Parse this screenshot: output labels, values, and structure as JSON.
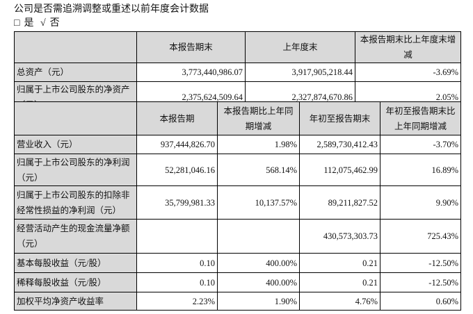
{
  "title": "公司是否需追溯调整或重述以前年度会计数据",
  "options": {
    "checkbox_icon": "□",
    "yes": "是",
    "check_icon": "√",
    "no": "否"
  },
  "table1": {
    "headers": [
      "",
      "本报告期末",
      "上年度末",
      "本报告期末比上年度末增减"
    ],
    "rows": [
      [
        "总资产（元）",
        "3,773,440,986.07",
        "3,917,905,218.44",
        "-3.69%"
      ],
      [
        "归属于上市公司股东的净资产（元）",
        "2,375,624,509.64",
        "2,327,874,670.86",
        "2.05%"
      ]
    ]
  },
  "table2": {
    "headers": [
      "",
      "本报告期",
      "本报告期比上年同期增减",
      "年初至报告期末",
      "年初至报告期末比上年同期增减"
    ],
    "rows": [
      [
        "营业收入（元）",
        "937,444,826.70",
        "1.98%",
        "2,589,730,412.43",
        "-3.70%"
      ],
      [
        "归属于上市公司股东的净利润（元）",
        "52,281,046.16",
        "568.14%",
        "112,075,462.99",
        "16.89%"
      ],
      [
        "归属于上市公司股东的扣除非经常性损益的净利润（元）",
        "35,799,981.33",
        "10,137.57%",
        "89,211,827.52",
        "9.90%"
      ],
      [
        "经营活动产生的现金流量净额（元）",
        "",
        "",
        "430,573,303.73",
        "725.43%"
      ],
      [
        "基本每股收益（元/股）",
        "0.10",
        "400.00%",
        "0.21",
        "-12.50%"
      ],
      [
        "稀释每股收益（元/股）",
        "0.10",
        "400.00%",
        "0.21",
        "-12.50%"
      ],
      [
        "加权平均净资产收益率",
        "2.23%",
        "1.90%",
        "4.76%",
        "0.60%"
      ]
    ]
  }
}
